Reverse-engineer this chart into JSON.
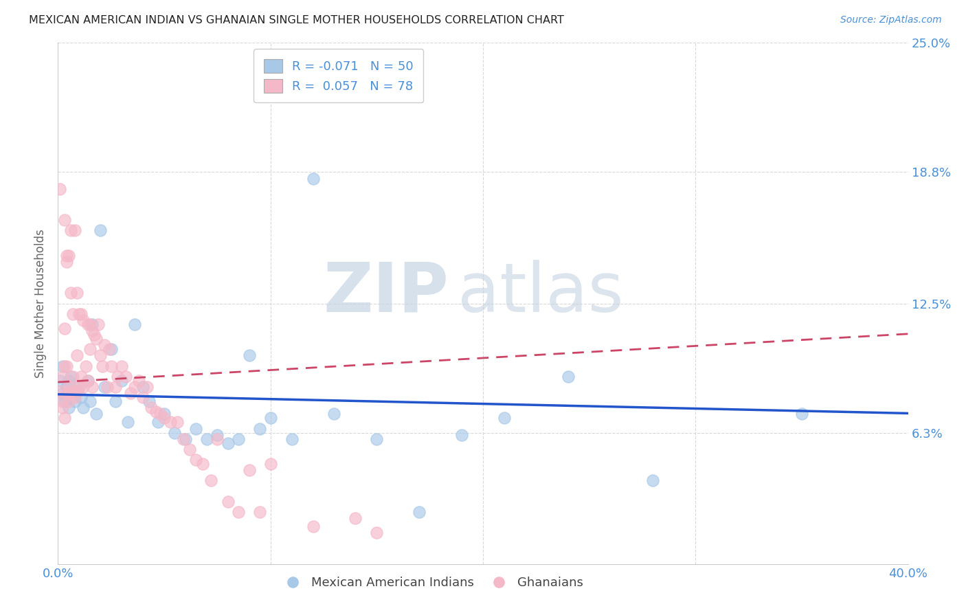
{
  "title": "MEXICAN AMERICAN INDIAN VS GHANAIAN SINGLE MOTHER HOUSEHOLDS CORRELATION CHART",
  "source": "Source: ZipAtlas.com",
  "ylabel": "Single Mother Households",
  "xlim": [
    0.0,
    0.4
  ],
  "ylim": [
    0.0,
    0.25
  ],
  "blue_color": "#a8c8e8",
  "blue_edge_color": "#a8c8e8",
  "blue_line_color": "#2255cc",
  "pink_color": "#f5b8c8",
  "pink_edge_color": "#f5b8c8",
  "pink_line_color": "#cc4466",
  "label_color": "#4a90d9",
  "blue_R": -0.071,
  "blue_N": 50,
  "pink_R": 0.057,
  "pink_N": 78,
  "blue_x": [
    0.001,
    0.002,
    0.002,
    0.003,
    0.003,
    0.004,
    0.005,
    0.005,
    0.006,
    0.007,
    0.008,
    0.009,
    0.01,
    0.011,
    0.012,
    0.014,
    0.015,
    0.016,
    0.018,
    0.02,
    0.022,
    0.025,
    0.027,
    0.03,
    0.033,
    0.036,
    0.04,
    0.043,
    0.047,
    0.05,
    0.055,
    0.06,
    0.065,
    0.07,
    0.075,
    0.08,
    0.085,
    0.09,
    0.095,
    0.1,
    0.11,
    0.12,
    0.13,
    0.15,
    0.17,
    0.19,
    0.21,
    0.24,
    0.28,
    0.35
  ],
  "blue_y": [
    0.088,
    0.082,
    0.095,
    0.08,
    0.078,
    0.085,
    0.088,
    0.075,
    0.09,
    0.082,
    0.078,
    0.083,
    0.085,
    0.08,
    0.075,
    0.088,
    0.078,
    0.115,
    0.072,
    0.16,
    0.085,
    0.103,
    0.078,
    0.088,
    0.068,
    0.115,
    0.085,
    0.078,
    0.068,
    0.072,
    0.063,
    0.06,
    0.065,
    0.06,
    0.062,
    0.058,
    0.06,
    0.1,
    0.065,
    0.07,
    0.06,
    0.185,
    0.072,
    0.06,
    0.025,
    0.062,
    0.07,
    0.09,
    0.04,
    0.072
  ],
  "pink_x": [
    0.001,
    0.001,
    0.002,
    0.002,
    0.002,
    0.003,
    0.003,
    0.003,
    0.004,
    0.004,
    0.004,
    0.005,
    0.005,
    0.005,
    0.006,
    0.006,
    0.006,
    0.007,
    0.007,
    0.007,
    0.008,
    0.008,
    0.009,
    0.009,
    0.009,
    0.01,
    0.01,
    0.011,
    0.011,
    0.012,
    0.012,
    0.013,
    0.014,
    0.014,
    0.015,
    0.015,
    0.016,
    0.016,
    0.017,
    0.018,
    0.019,
    0.02,
    0.021,
    0.022,
    0.023,
    0.024,
    0.025,
    0.027,
    0.028,
    0.03,
    0.032,
    0.034,
    0.036,
    0.038,
    0.04,
    0.042,
    0.044,
    0.046,
    0.048,
    0.05,
    0.053,
    0.056,
    0.059,
    0.062,
    0.065,
    0.068,
    0.072,
    0.075,
    0.08,
    0.085,
    0.09,
    0.095,
    0.1,
    0.12,
    0.14,
    0.15,
    0.003,
    0.004
  ],
  "pink_y": [
    0.083,
    0.18,
    0.09,
    0.078,
    0.075,
    0.165,
    0.095,
    0.07,
    0.148,
    0.095,
    0.082,
    0.148,
    0.085,
    0.078,
    0.16,
    0.13,
    0.083,
    0.12,
    0.082,
    0.09,
    0.16,
    0.08,
    0.13,
    0.1,
    0.083,
    0.12,
    0.085,
    0.12,
    0.09,
    0.117,
    0.085,
    0.095,
    0.115,
    0.088,
    0.115,
    0.103,
    0.112,
    0.085,
    0.11,
    0.108,
    0.115,
    0.1,
    0.095,
    0.105,
    0.085,
    0.103,
    0.095,
    0.085,
    0.09,
    0.095,
    0.09,
    0.082,
    0.085,
    0.088,
    0.08,
    0.085,
    0.075,
    0.073,
    0.072,
    0.07,
    0.068,
    0.068,
    0.06,
    0.055,
    0.05,
    0.048,
    0.04,
    0.06,
    0.03,
    0.025,
    0.045,
    0.025,
    0.048,
    0.018,
    0.022,
    0.015,
    0.113,
    0.145
  ],
  "background_color": "#ffffff",
  "grid_color": "#d8d8d8",
  "watermark_zip": "ZIP",
  "watermark_atlas": "atlas",
  "ytick_vals": [
    0.063,
    0.125,
    0.188,
    0.25
  ],
  "ytick_labels": [
    "6.3%",
    "12.5%",
    "18.8%",
    "25.0%"
  ]
}
